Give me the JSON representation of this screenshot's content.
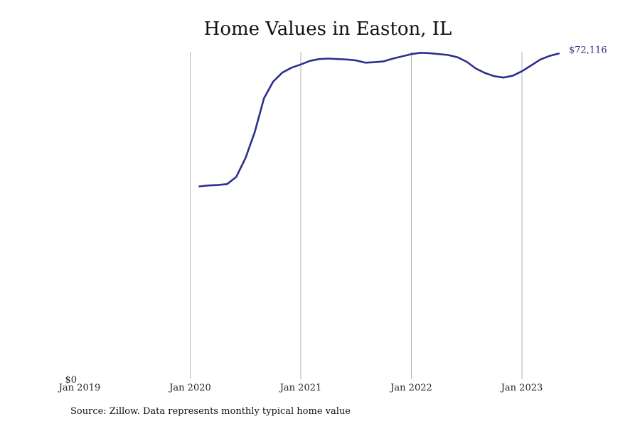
{
  "chart_data": {
    "type": "line",
    "title": "Home Values in Easton, IL",
    "xlabel": "",
    "ylabel": "",
    "x_tick_labels": [
      "Jan 2019",
      "Jan 2020",
      "Jan 2021",
      "Jan 2022",
      "Jan 2023"
    ],
    "y_tick_labels": [
      "$0"
    ],
    "ylim": [
      0,
      72500
    ],
    "xlim": [
      "2019-01",
      "2023-09"
    ],
    "grid": "vertical lines at each January",
    "legend": "none",
    "end_label": "$72,116",
    "line_color": "#2e2e8f",
    "series": [
      {
        "x": [
          "2020-02",
          "2020-03",
          "2020-04",
          "2020-05",
          "2020-06",
          "2020-07",
          "2020-08",
          "2020-09",
          "2020-10",
          "2020-11",
          "2020-12",
          "2021-01",
          "2021-02",
          "2021-03",
          "2021-04",
          "2021-05",
          "2021-06",
          "2021-07",
          "2021-08",
          "2021-09",
          "2021-10",
          "2021-11",
          "2021-12",
          "2022-01",
          "2022-02",
          "2022-03",
          "2022-04",
          "2022-05",
          "2022-06",
          "2022-07",
          "2022-08",
          "2022-09",
          "2022-10",
          "2022-11",
          "2022-12",
          "2023-01",
          "2023-02",
          "2023-03",
          "2023-04",
          "2023-05"
        ],
        "values": [
          42700,
          42900,
          43000,
          43200,
          44800,
          49000,
          54700,
          62200,
          65900,
          67900,
          69000,
          69700,
          70500,
          70900,
          71000,
          70900,
          70800,
          70600,
          70100,
          70200,
          70400,
          71000,
          71500,
          72000,
          72300,
          72200,
          72000,
          71800,
          71300,
          70300,
          68800,
          67800,
          67100,
          66800,
          67200,
          68200,
          69500,
          70800,
          71600,
          72116
        ]
      }
    ]
  },
  "source_note": "Source: Zillow. Data represents monthly typical home value"
}
